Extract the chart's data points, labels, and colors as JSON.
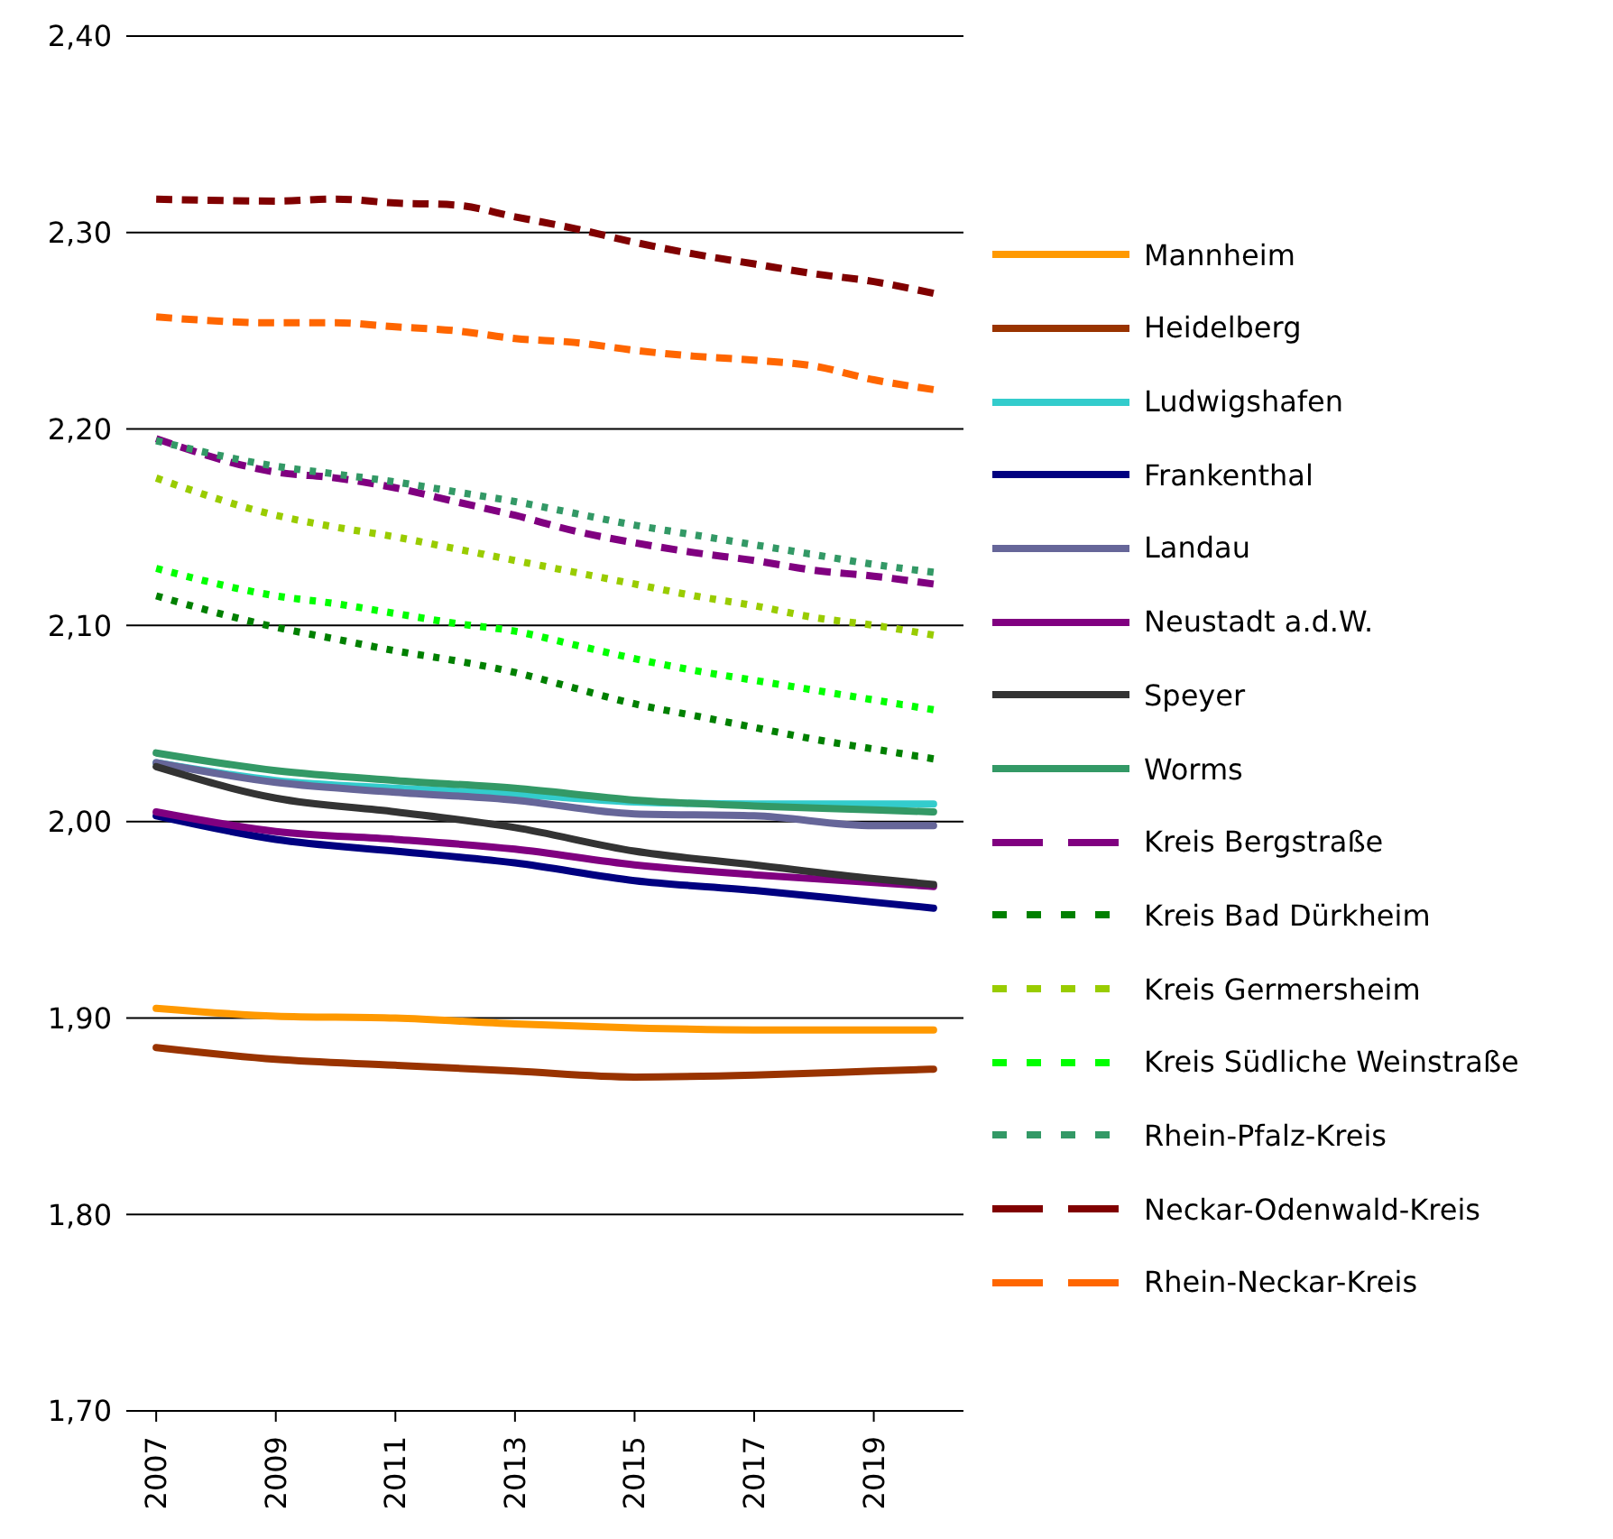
{
  "chart_data": {
    "type": "line",
    "x": [
      2007,
      2009,
      2011,
      2013,
      2015,
      2017,
      2019,
      2020
    ],
    "xlim": [
      2006.5,
      2020.5
    ],
    "xticks": [
      2007,
      2009,
      2011,
      2013,
      2015,
      2017,
      2019
    ],
    "ylim": [
      1.7,
      2.4
    ],
    "yticks": [
      {
        "value": 1.7,
        "label": "1,70"
      },
      {
        "value": 1.8,
        "label": "1,80"
      },
      {
        "value": 1.9,
        "label": "1,90"
      },
      {
        "value": 2.0,
        "label": "2,00"
      },
      {
        "value": 2.1,
        "label": "2,10"
      },
      {
        "value": 2.2,
        "label": "2,20"
      },
      {
        "value": 2.3,
        "label": "2,30"
      },
      {
        "value": 2.4,
        "label": "2,40"
      }
    ],
    "grid": "y",
    "legend": "right",
    "marker": "none",
    "series": [
      {
        "name": "Mannheim",
        "color": "#ff9900",
        "line_style": "solid",
        "values": [
          1.905,
          1.901,
          1.9,
          1.897,
          1.895,
          1.894,
          1.894,
          1.894
        ]
      },
      {
        "name": "Heidelberg",
        "color": "#993300",
        "line_style": "solid",
        "values": [
          1.885,
          1.879,
          1.876,
          1.873,
          1.87,
          1.871,
          1.873,
          1.874
        ]
      },
      {
        "name": "Ludwigshafen",
        "color": "#33cccc",
        "line_style": "solid",
        "values": [
          2.03,
          2.021,
          2.017,
          2.014,
          2.01,
          2.009,
          2.009,
          2.009
        ]
      },
      {
        "name": "Frankenthal",
        "color": "#000080",
        "line_style": "solid",
        "values": [
          2.003,
          1.991,
          1.985,
          1.979,
          1.97,
          1.965,
          1.959,
          1.956
        ]
      },
      {
        "name": "Landau",
        "color": "#666699",
        "line_style": "solid",
        "values": [
          2.03,
          2.02,
          2.015,
          2.011,
          2.004,
          2.003,
          1.998,
          1.998
        ]
      },
      {
        "name": "Neustadt a.d.W.",
        "color": "#800080",
        "line_style": "solid",
        "values": [
          2.005,
          1.995,
          1.991,
          1.986,
          1.978,
          1.973,
          1.969,
          1.967
        ]
      },
      {
        "name": "Speyer",
        "color": "#333333",
        "line_style": "solid",
        "values": [
          2.028,
          2.012,
          2.005,
          1.997,
          1.985,
          1.978,
          1.971,
          1.968
        ]
      },
      {
        "name": "Worms",
        "color": "#339966",
        "line_style": "solid",
        "values": [
          2.035,
          2.026,
          2.021,
          2.017,
          2.011,
          2.008,
          2.006,
          2.005
        ]
      },
      {
        "name": "Kreis Bergstraße",
        "color": "#800080",
        "line_style": "dashed",
        "x": [
          2007,
          2009,
          2010,
          2011,
          2012,
          2013,
          2014,
          2015,
          2016,
          2017,
          2018,
          2019,
          2020
        ],
        "values": [
          2.195,
          2.178,
          2.175,
          2.17,
          2.163,
          2.156,
          2.148,
          2.142,
          2.137,
          2.133,
          2.128,
          2.125,
          2.121
        ]
      },
      {
        "name": "Kreis Bad Dürkheim",
        "color": "#008000",
        "line_style": "dotted",
        "x": [
          2007,
          2009,
          2010,
          2011,
          2012,
          2013,
          2014,
          2015,
          2016,
          2017,
          2018,
          2019,
          2020
        ],
        "values": [
          2.115,
          2.099,
          2.093,
          2.087,
          2.082,
          2.076,
          2.068,
          2.06,
          2.054,
          2.048,
          2.042,
          2.037,
          2.032
        ]
      },
      {
        "name": "Kreis Germersheim",
        "color": "#99cc00",
        "line_style": "dotted",
        "x": [
          2007,
          2009,
          2010,
          2011,
          2012,
          2013,
          2014,
          2015,
          2016,
          2017,
          2018,
          2019,
          2020
        ],
        "values": [
          2.175,
          2.156,
          2.15,
          2.145,
          2.139,
          2.133,
          2.127,
          2.121,
          2.115,
          2.11,
          2.104,
          2.1,
          2.095
        ]
      },
      {
        "name": "Kreis Südliche Weinstraße",
        "color": "#00ff00",
        "line_style": "dotted",
        "x": [
          2007,
          2009,
          2010,
          2011,
          2012,
          2013,
          2014,
          2015,
          2016,
          2017,
          2018,
          2019,
          2020
        ],
        "values": [
          2.129,
          2.115,
          2.111,
          2.106,
          2.101,
          2.097,
          2.09,
          2.083,
          2.077,
          2.072,
          2.067,
          2.062,
          2.057
        ]
      },
      {
        "name": "Rhein-Pfalz-Kreis",
        "color": "#339966",
        "line_style": "dotted",
        "x": [
          2007,
          2009,
          2010,
          2011,
          2012,
          2013,
          2014,
          2015,
          2016,
          2017,
          2018,
          2019,
          2020
        ],
        "values": [
          2.194,
          2.181,
          2.177,
          2.173,
          2.168,
          2.163,
          2.157,
          2.151,
          2.146,
          2.141,
          2.136,
          2.131,
          2.127
        ]
      },
      {
        "name": "Neckar-Odenwald-Kreis",
        "color": "#800000",
        "line_style": "dashed",
        "x": [
          2007,
          2009,
          2010,
          2011,
          2012,
          2013,
          2014,
          2015,
          2016,
          2017,
          2018,
          2019,
          2020
        ],
        "values": [
          2.317,
          2.316,
          2.317,
          2.315,
          2.314,
          2.308,
          2.302,
          2.295,
          2.289,
          2.284,
          2.279,
          2.275,
          2.269
        ]
      },
      {
        "name": "Rhein-Neckar-Kreis",
        "color": "#ff6600",
        "line_style": "dashed",
        "x": [
          2007,
          2009,
          2010,
          2011,
          2012,
          2013,
          2014,
          2015,
          2016,
          2017,
          2018,
          2019,
          2020
        ],
        "values": [
          2.257,
          2.254,
          2.254,
          2.252,
          2.25,
          2.246,
          2.244,
          2.24,
          2.237,
          2.235,
          2.232,
          2.225,
          2.22
        ]
      }
    ]
  }
}
